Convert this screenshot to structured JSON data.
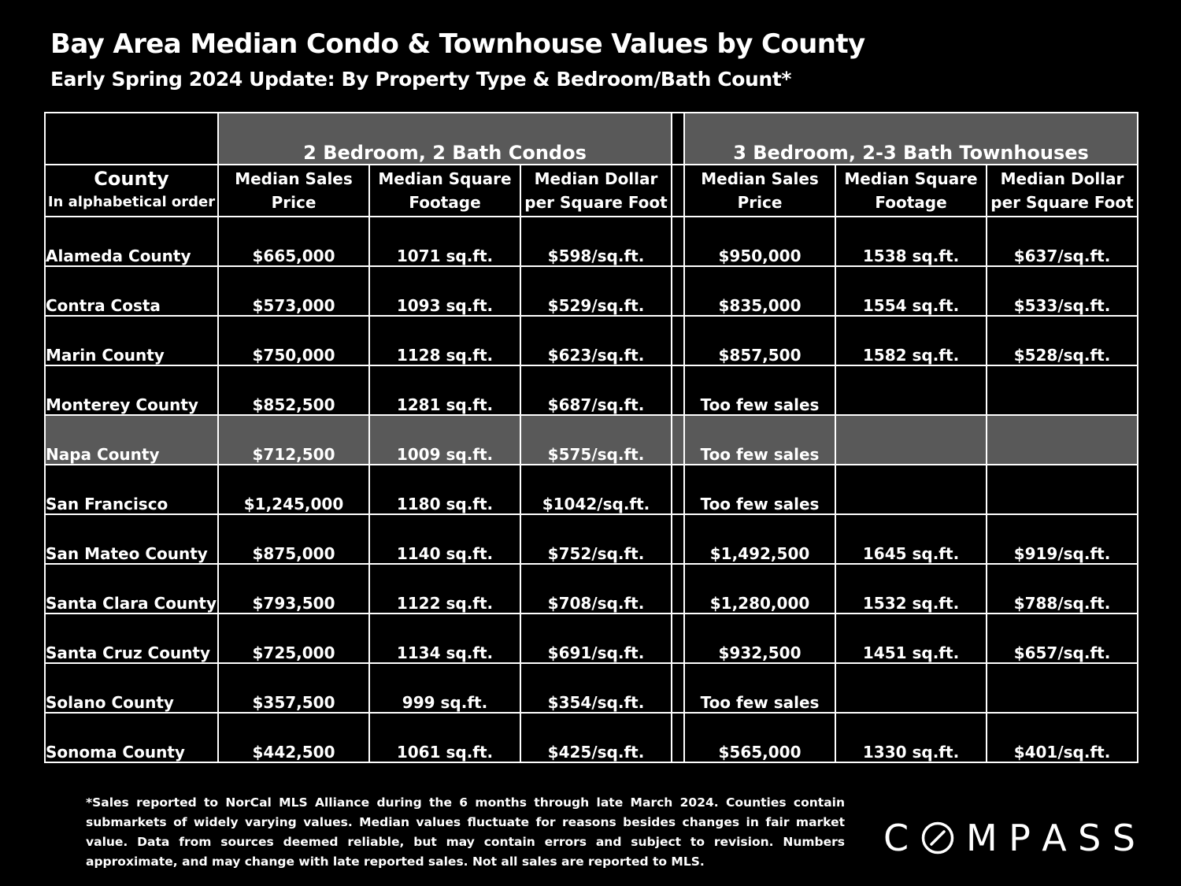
{
  "title": "Bay Area Median Condo & Townhouse Values by County",
  "subtitle": "Early Spring 2024 Update:  By Property Type & Bedroom/Bath Count*",
  "groups": {
    "condos": "2 Bedroom, 2 Bath Condos",
    "townhouses": "3 Bedroom, 2-3 Bath Townhouses"
  },
  "headers": {
    "county": "County",
    "county_sub": "In alphabetical order",
    "price_1": "Median Sales",
    "price_2": "Price",
    "sqft_1": "Median Square",
    "sqft_2": "Footage",
    "ppsf_1": "Median Dollar",
    "ppsf_2": "per Square Foot"
  },
  "rows": [
    {
      "county": "Alameda County",
      "c_price": "$665,000",
      "c_sqft": "1071 sq.ft.",
      "c_ppsf": "$598/sq.ft.",
      "t_price": "$950,000",
      "t_sqft": "1538 sq.ft.",
      "t_ppsf": "$637/sq.ft."
    },
    {
      "county": "Contra Costa",
      "c_price": "$573,000",
      "c_sqft": "1093 sq.ft.",
      "c_ppsf": "$529/sq.ft.",
      "t_price": "$835,000",
      "t_sqft": "1554 sq.ft.",
      "t_ppsf": "$533/sq.ft."
    },
    {
      "county": "Marin County",
      "c_price": "$750,000",
      "c_sqft": "1128 sq.ft.",
      "c_ppsf": "$623/sq.ft.",
      "t_price": "$857,500",
      "t_sqft": "1582 sq.ft.",
      "t_ppsf": "$528/sq.ft."
    },
    {
      "county": "Monterey County",
      "c_price": "$852,500",
      "c_sqft": "1281 sq.ft.",
      "c_ppsf": "$687/sq.ft.",
      "t_price": "Too few sales",
      "t_sqft": "",
      "t_ppsf": ""
    },
    {
      "county": "Napa County",
      "c_price": "$712,500",
      "c_sqft": "1009 sq.ft.",
      "c_ppsf": "$575/sq.ft.",
      "t_price": "Too few sales",
      "t_sqft": "",
      "t_ppsf": ""
    },
    {
      "county": "San Francisco",
      "c_price": "$1,245,000",
      "c_sqft": "1180 sq.ft.",
      "c_ppsf": "$1042/sq.ft.",
      "t_price": "Too few sales",
      "t_sqft": "",
      "t_ppsf": ""
    },
    {
      "county": "San Mateo County",
      "c_price": "$875,000",
      "c_sqft": "1140 sq.ft.",
      "c_ppsf": "$752/sq.ft.",
      "t_price": "$1,492,500",
      "t_sqft": "1645 sq.ft.",
      "t_ppsf": "$919/sq.ft."
    },
    {
      "county": "Santa Clara County",
      "c_price": "$793,500",
      "c_sqft": "1122 sq.ft.",
      "c_ppsf": "$708/sq.ft.",
      "t_price": "$1,280,000",
      "t_sqft": "1532 sq.ft.",
      "t_ppsf": "$788/sq.ft."
    },
    {
      "county": "Santa Cruz County",
      "c_price": "$725,000",
      "c_sqft": "1134 sq.ft.",
      "c_ppsf": "$691/sq.ft.",
      "t_price": "$932,500",
      "t_sqft": "1451 sq.ft.",
      "t_ppsf": "$657/sq.ft."
    },
    {
      "county": "Solano County",
      "c_price": "$357,500",
      "c_sqft": "999 sq.ft.",
      "c_ppsf": "$354/sq.ft.",
      "t_price": "Too few sales",
      "t_sqft": "",
      "t_ppsf": ""
    },
    {
      "county": "Sonoma County",
      "c_price": "$442,500",
      "c_sqft": "1061 sq.ft.",
      "c_ppsf": "$425/sq.ft.",
      "t_price": "$565,000",
      "t_sqft": "1330 sq.ft.",
      "t_ppsf": "$401/sq.ft."
    }
  ],
  "footnote": "*Sales reported to NorCal MLS Alliance during the 6 months through late March 2024. Counties contain submarkets of widely varying values. Median values fluctuate for reasons besides changes in fair market value. Data from sources deemed reliable, but may contain errors and subject to revision.  Numbers approximate, and may change with late reported sales. Not all sales are reported to MLS.",
  "logo": {
    "text": "COMPASS",
    "letters": [
      "C",
      "O",
      "M",
      "P",
      "A",
      "S",
      "S"
    ]
  },
  "colors": {
    "background": "#000000",
    "text": "#ffffff",
    "header_fill": "#595959",
    "highlight_row": "#595959"
  }
}
